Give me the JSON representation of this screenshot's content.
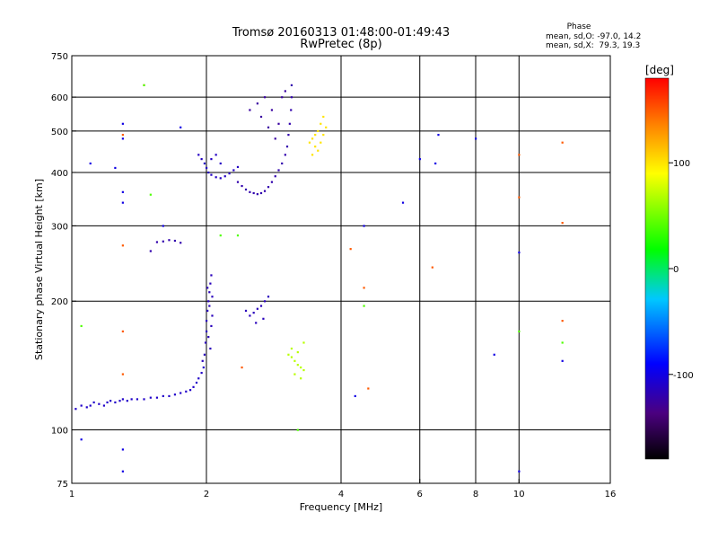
{
  "chart_data": {
    "type": "scatter",
    "title": "Tromsø 20160313 01:48:00-01:49:43",
    "subtitle": "RwPretec (8p)",
    "xlabel": "Frequency [MHz]",
    "ylabel": "Stationary phase Virtual Height [km]",
    "x_scale": "log",
    "y_scale": "log",
    "xlim": [
      1,
      16
    ],
    "ylim": [
      75,
      750
    ],
    "x_ticks": [
      1,
      2,
      4,
      6,
      8,
      10,
      16
    ],
    "x_tick_labels": [
      "1",
      "2",
      "4",
      "6",
      "8",
      "10",
      "16"
    ],
    "x_grid": [
      2,
      4,
      6,
      8,
      10
    ],
    "y_ticks": [
      75,
      100,
      200,
      300,
      400,
      500,
      600,
      750
    ],
    "y_tick_labels": [
      "75",
      "100",
      "200",
      "300",
      "400",
      "500",
      "600",
      "750"
    ],
    "y_grid": [
      100,
      200,
      300,
      400,
      500,
      600
    ],
    "grid": true,
    "stats": {
      "heading": "Phase",
      "o_line": "mean, sd,O: -97.0, 14.2",
      "x_line": "mean, sd,X:  79.3, 19.3"
    },
    "colorbar": {
      "label": "[deg]",
      "range": [
        -180,
        180
      ],
      "ticks": [
        100,
        0,
        -100
      ],
      "tick_labels": [
        "100",
        "0",
        "-100"
      ],
      "colormap": "rainbow"
    },
    "point_groups": [
      {
        "name": "low-trace",
        "phase": -110,
        "points": [
          [
            1.02,
            112
          ],
          [
            1.05,
            114
          ],
          [
            1.08,
            113
          ],
          [
            1.1,
            114
          ],
          [
            1.12,
            116
          ],
          [
            1.15,
            115
          ],
          [
            1.18,
            114
          ],
          [
            1.2,
            116
          ],
          [
            1.22,
            117
          ],
          [
            1.25,
            116
          ],
          [
            1.28,
            117
          ],
          [
            1.3,
            118
          ],
          [
            1.33,
            117
          ],
          [
            1.36,
            118
          ],
          [
            1.4,
            118
          ],
          [
            1.45,
            118
          ],
          [
            1.5,
            119
          ],
          [
            1.55,
            119
          ],
          [
            1.6,
            120
          ],
          [
            1.65,
            120
          ],
          [
            1.7,
            121
          ],
          [
            1.75,
            122
          ],
          [
            1.8,
            123
          ],
          [
            1.84,
            124
          ],
          [
            1.87,
            126
          ],
          [
            1.9,
            129
          ],
          [
            1.92,
            132
          ],
          [
            1.95,
            136
          ],
          [
            1.97,
            140
          ]
        ]
      },
      {
        "name": "rise-trace",
        "phase": -115,
        "points": [
          [
            1.98,
            150
          ],
          [
            1.99,
            160
          ],
          [
            2.0,
            170
          ],
          [
            2.0,
            180
          ],
          [
            2.01,
            190
          ],
          [
            2.02,
            200
          ],
          [
            2.03,
            210
          ],
          [
            2.04,
            220
          ],
          [
            2.05,
            230
          ],
          [
            2.03,
            195
          ],
          [
            2.06,
            185
          ],
          [
            2.05,
            175
          ],
          [
            2.02,
            165
          ],
          [
            2.04,
            155
          ],
          [
            1.96,
            145
          ],
          [
            2.01,
            215
          ],
          [
            2.06,
            205
          ]
        ]
      },
      {
        "name": "e-region-low",
        "phase": -120,
        "points": [
          [
            1.55,
            275
          ],
          [
            1.6,
            276
          ],
          [
            1.65,
            278
          ],
          [
            1.7,
            277
          ],
          [
            1.75,
            274
          ],
          [
            1.5,
            262
          ]
        ]
      },
      {
        "name": "f-trace-left",
        "phase": -112,
        "points": [
          [
            1.92,
            440
          ],
          [
            1.95,
            430
          ],
          [
            1.98,
            420
          ],
          [
            2.0,
            410
          ],
          [
            2.02,
            400
          ],
          [
            2.05,
            395
          ],
          [
            2.1,
            390
          ],
          [
            2.15,
            388
          ],
          [
            2.2,
            392
          ],
          [
            2.25,
            398
          ],
          [
            2.3,
            405
          ],
          [
            2.35,
            412
          ],
          [
            2.1,
            440
          ],
          [
            2.05,
            430
          ],
          [
            2.15,
            420
          ]
        ]
      },
      {
        "name": "f-trace-cusp",
        "phase": -120,
        "points": [
          [
            2.35,
            380
          ],
          [
            2.4,
            372
          ],
          [
            2.45,
            365
          ],
          [
            2.5,
            360
          ],
          [
            2.55,
            358
          ],
          [
            2.6,
            356
          ],
          [
            2.65,
            358
          ],
          [
            2.7,
            362
          ],
          [
            2.75,
            370
          ],
          [
            2.8,
            380
          ],
          [
            2.85,
            392
          ],
          [
            2.9,
            405
          ],
          [
            2.95,
            420
          ],
          [
            3.0,
            440
          ],
          [
            3.03,
            460
          ],
          [
            3.05,
            490
          ],
          [
            3.07,
            520
          ],
          [
            3.09,
            560
          ],
          [
            3.1,
            600
          ],
          [
            3.1,
            640
          ]
        ]
      },
      {
        "name": "f-trace-upper",
        "phase": -125,
        "points": [
          [
            2.5,
            560
          ],
          [
            2.6,
            580
          ],
          [
            2.7,
            600
          ],
          [
            2.8,
            560
          ],
          [
            2.9,
            520
          ],
          [
            2.65,
            540
          ],
          [
            2.75,
            510
          ],
          [
            2.85,
            480
          ],
          [
            2.95,
            600
          ],
          [
            3.0,
            620
          ]
        ]
      },
      {
        "name": "mid-blob",
        "phase": -115,
        "points": [
          [
            2.45,
            190
          ],
          [
            2.5,
            185
          ],
          [
            2.55,
            188
          ],
          [
            2.6,
            192
          ],
          [
            2.65,
            195
          ],
          [
            2.7,
            200
          ],
          [
            2.75,
            205
          ],
          [
            2.68,
            182
          ],
          [
            2.58,
            178
          ]
        ]
      },
      {
        "name": "x-trace-f",
        "phase": 100,
        "points": [
          [
            3.4,
            470
          ],
          [
            3.45,
            480
          ],
          [
            3.5,
            490
          ],
          [
            3.55,
            500
          ],
          [
            3.6,
            520
          ],
          [
            3.65,
            540
          ],
          [
            3.5,
            460
          ],
          [
            3.55,
            450
          ],
          [
            3.6,
            470
          ],
          [
            3.65,
            490
          ],
          [
            3.7,
            510
          ],
          [
            3.45,
            440
          ]
        ]
      },
      {
        "name": "x-trace-e",
        "phase": 70,
        "points": [
          [
            3.05,
            150
          ],
          [
            3.1,
            148
          ],
          [
            3.15,
            145
          ],
          [
            3.2,
            142
          ],
          [
            3.25,
            140
          ],
          [
            3.3,
            138
          ],
          [
            3.1,
            155
          ],
          [
            3.2,
            152
          ],
          [
            3.3,
            160
          ],
          [
            3.15,
            135
          ],
          [
            3.25,
            132
          ]
        ]
      },
      {
        "name": "scatter-misc",
        "phase": -100,
        "points": [
          [
            1.3,
            520
          ],
          [
            1.3,
            480
          ],
          [
            1.3,
            360
          ],
          [
            1.3,
            340
          ],
          [
            1.25,
            410
          ],
          [
            1.6,
            300
          ],
          [
            1.75,
            510
          ],
          [
            1.1,
            420
          ],
          [
            1.05,
            95
          ],
          [
            1.3,
            90
          ],
          [
            1.3,
            80
          ],
          [
            4.5,
            300
          ],
          [
            5.5,
            340
          ],
          [
            6.0,
            430
          ],
          [
            6.5,
            420
          ],
          [
            6.6,
            490
          ],
          [
            8.0,
            480
          ],
          [
            8.8,
            150
          ],
          [
            10.0,
            80
          ],
          [
            4.3,
            120
          ],
          [
            10.0,
            260
          ],
          [
            12.5,
            145
          ]
        ]
      },
      {
        "name": "scatter-warm",
        "phase": 150,
        "points": [
          [
            1.3,
            490
          ],
          [
            1.3,
            270
          ],
          [
            1.3,
            170
          ],
          [
            1.3,
            135
          ],
          [
            1.45,
            640
          ],
          [
            4.5,
            215
          ],
          [
            4.6,
            125
          ],
          [
            6.4,
            240
          ],
          [
            10.0,
            440
          ],
          [
            10.0,
            350
          ],
          [
            12.5,
            470
          ],
          [
            12.5,
            305
          ],
          [
            12.5,
            180
          ],
          [
            4.2,
            265
          ],
          [
            2.4,
            140
          ]
        ]
      },
      {
        "name": "scatter-green",
        "phase": 40,
        "points": [
          [
            1.45,
            640
          ],
          [
            1.5,
            355
          ],
          [
            2.15,
            285
          ],
          [
            2.35,
            285
          ],
          [
            3.2,
            100
          ],
          [
            10.0,
            170
          ],
          [
            1.05,
            175
          ],
          [
            4.5,
            195
          ],
          [
            12.5,
            160
          ]
        ]
      }
    ]
  }
}
